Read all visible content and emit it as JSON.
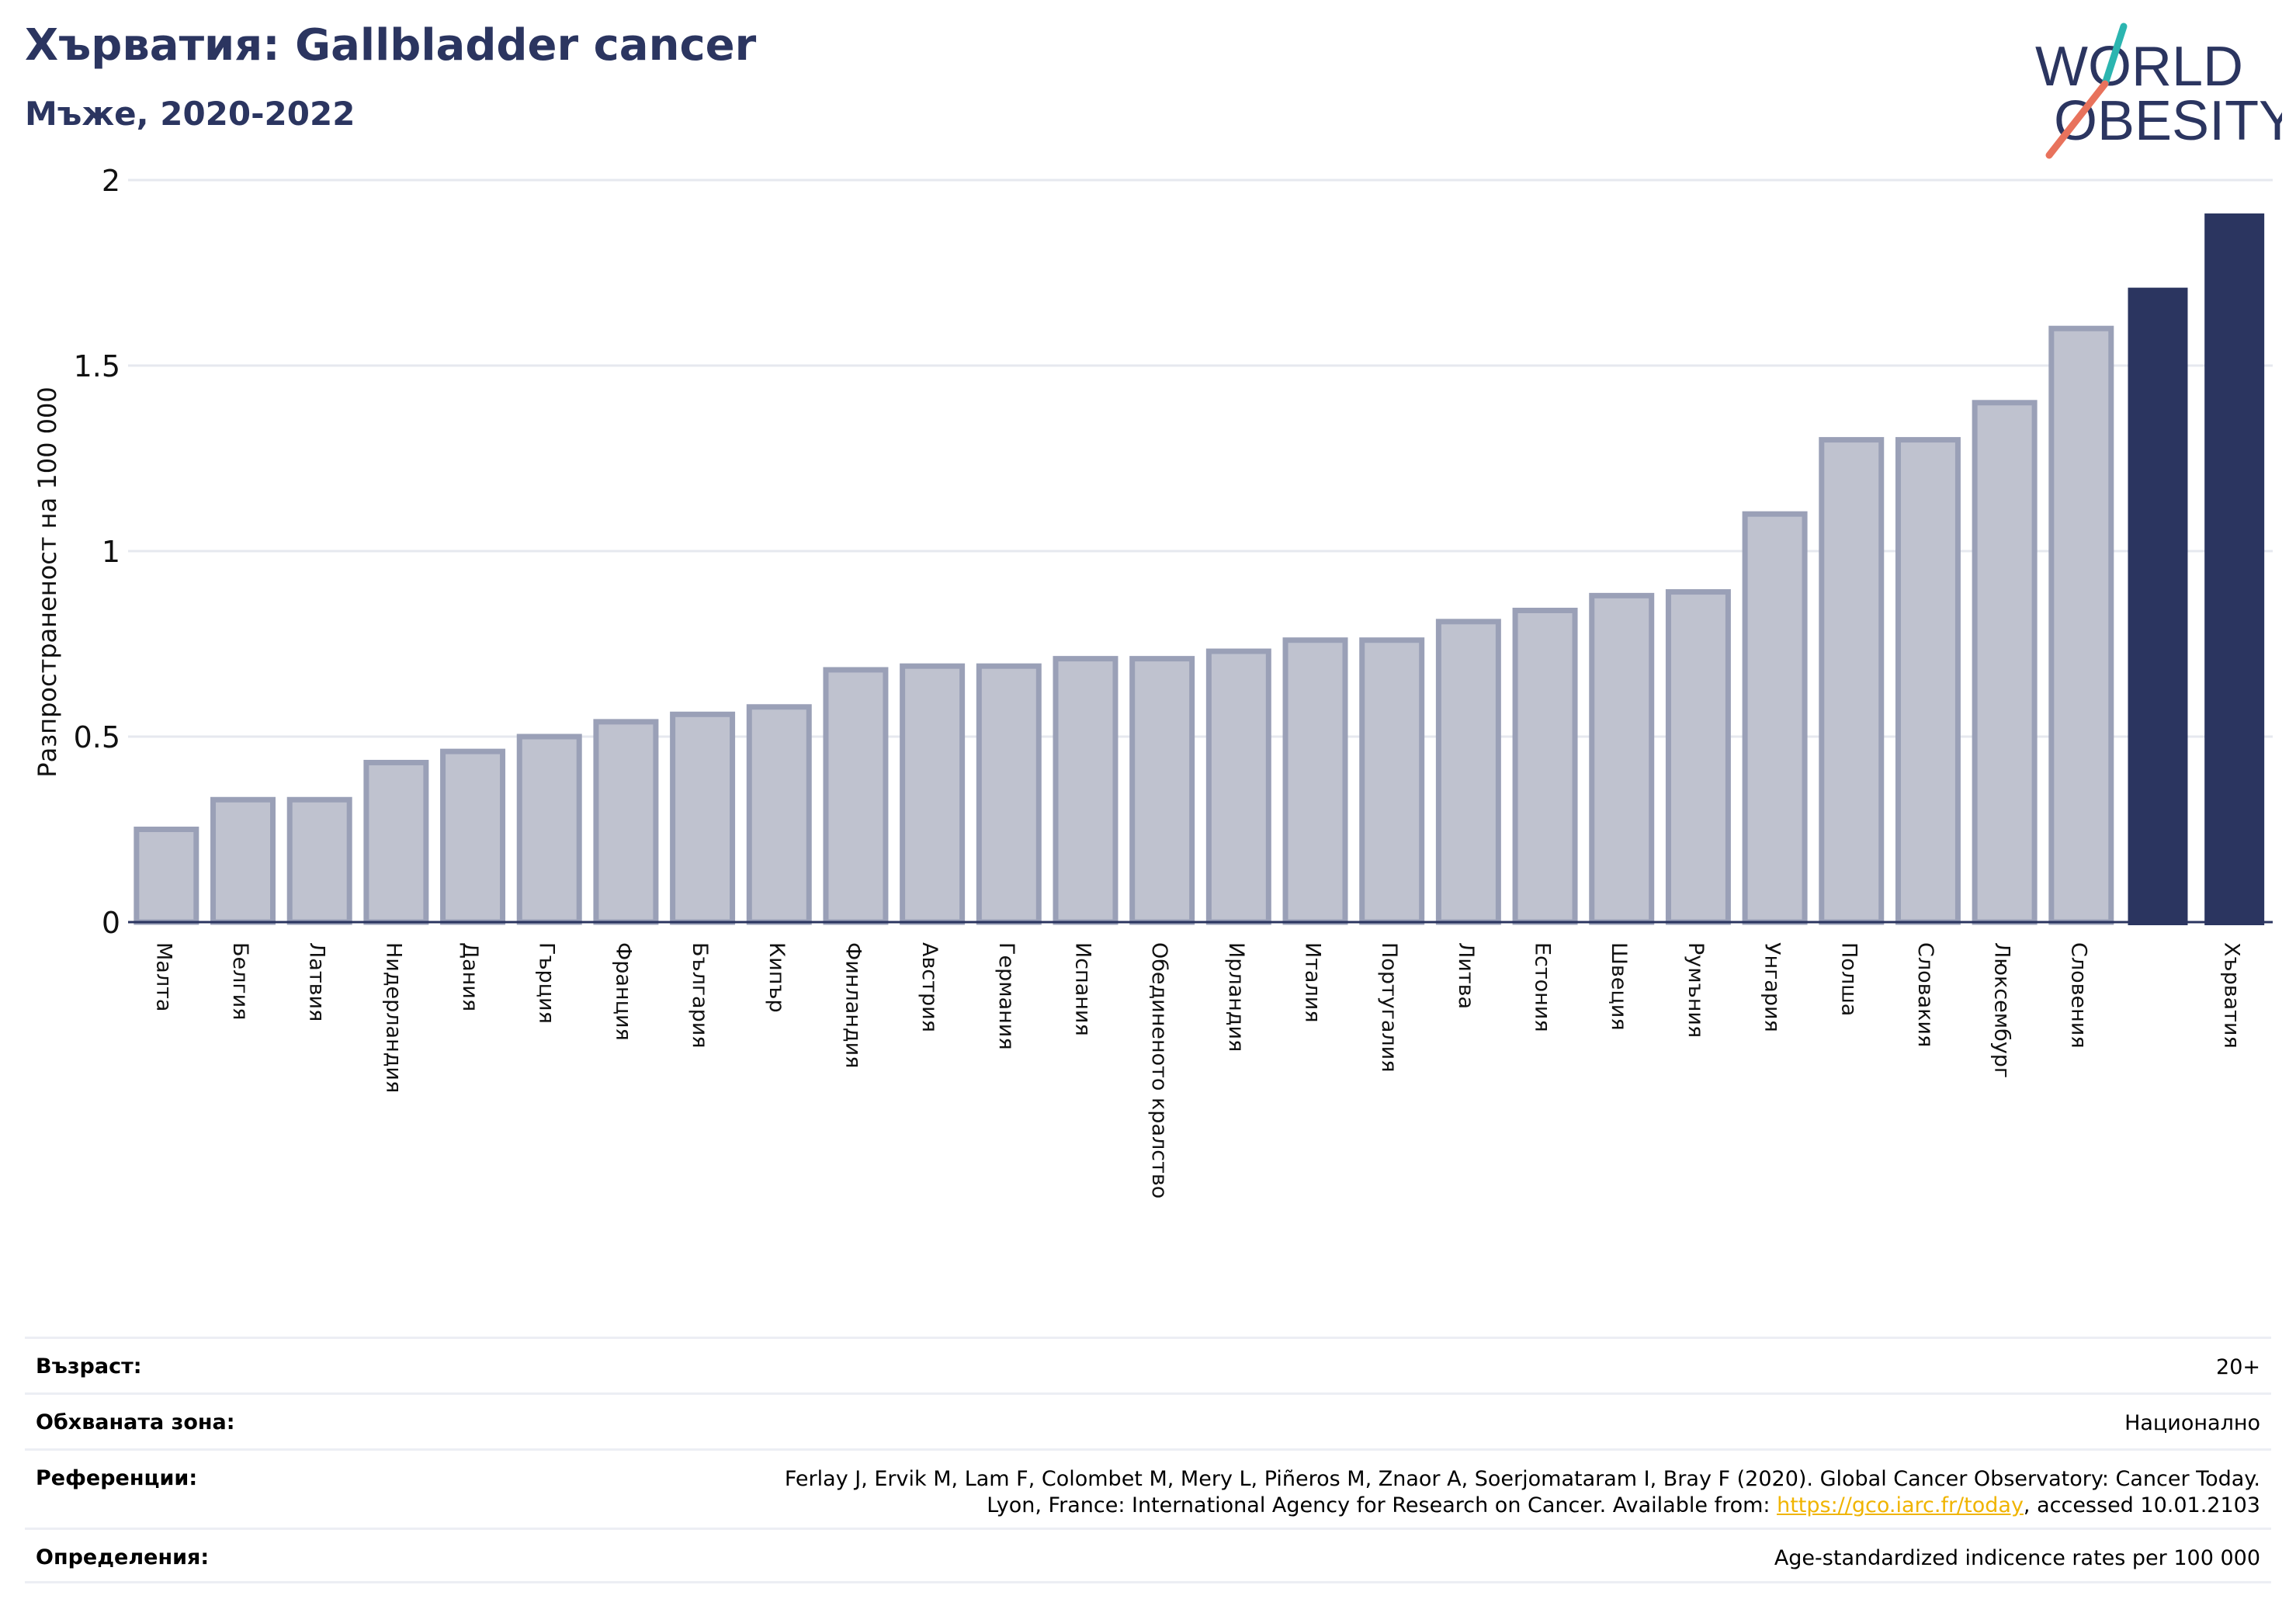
{
  "header": {
    "title": "Хърватия: Gallbladder cancer",
    "subtitle": "Мъже, 2020-2022"
  },
  "logo": {
    "line1": "WORLD",
    "line2": "OBESITY",
    "colors": {
      "text": "#2b3560",
      "slash_top": "#2bb5b0",
      "slash_bottom": "#e8725c"
    }
  },
  "chart_data": {
    "type": "bar",
    "ylabel": "Разпространеност  на 100 000",
    "ylim": [
      0,
      2
    ],
    "yticks": [
      0,
      0.5,
      1,
      1.5,
      2
    ],
    "ytick_labels": [
      "0",
      "0.5",
      "1",
      "1.5",
      "2"
    ],
    "grid": true,
    "colors": {
      "default": "#bfc2cf",
      "default_edge": "#9aa0b7",
      "highlight": "#2b3560"
    },
    "categories": [
      "Малта",
      "Белгия",
      "Латвия",
      "Нидерландия",
      "Дания",
      "Гърция",
      "Франция",
      "България",
      "Кипър",
      "Финландия",
      "Австрия",
      "Германия",
      "Испания",
      "Обединеното кралство",
      "Ирландия",
      "Италия",
      "Португалия",
      "Литва",
      "Естония",
      "Швеция",
      "Румъния",
      "Унгария",
      "Полша",
      "Словакия",
      "Люксембург",
      "Словения",
      "",
      "Хърватия"
    ],
    "values": [
      0.25,
      0.33,
      0.33,
      0.43,
      0.46,
      0.5,
      0.54,
      0.56,
      0.58,
      0.68,
      0.69,
      0.69,
      0.71,
      0.71,
      0.73,
      0.76,
      0.76,
      0.81,
      0.84,
      0.88,
      0.89,
      1.1,
      1.3,
      1.3,
      1.4,
      1.6,
      1.71,
      1.91
    ],
    "highlight": [
      false,
      false,
      false,
      false,
      false,
      false,
      false,
      false,
      false,
      false,
      false,
      false,
      false,
      false,
      false,
      false,
      false,
      false,
      false,
      false,
      false,
      false,
      false,
      false,
      false,
      false,
      true,
      true
    ]
  },
  "meta": {
    "age_label": "Възраст:",
    "age_value": "20+",
    "area_label": "Обхваната зона:",
    "area_value": "Национално",
    "refs_label": "Референции:",
    "refs_line1": "Ferlay J, Ervik M, Lam F, Colombet M, Mery L, Piñeros M, Znaor A, Soerjomataram I, Bray F (2020). Global Cancer Observatory: Cancer Today.",
    "refs_line2_prefix": "Lyon, France: International Agency for Research on Cancer. Available from: ",
    "refs_link": "https://gco.iarc.fr/today",
    "refs_line2_suffix": ", accessed 10.01.2103",
    "defs_label": "Определения:",
    "defs_value": "Age-standardized indicence rates per 100 000"
  }
}
